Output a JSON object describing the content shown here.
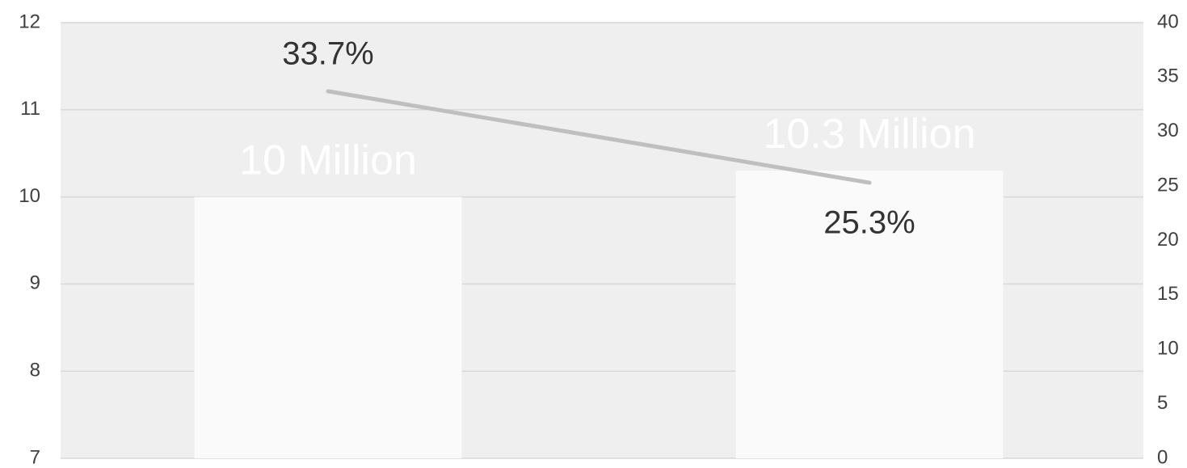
{
  "chart_data": {
    "type": "bar",
    "categories": [
      null,
      null
    ],
    "series": [
      {
        "type": "bar",
        "color": "#fafafa",
        "values": [
          10,
          10.3
        ],
        "value_labels": [
          "10 Million",
          "10.3 Million"
        ]
      },
      {
        "type": "line",
        "axis": "y2",
        "color": "#bfbfbf",
        "values": [
          33.7,
          25.3
        ],
        "value_labels": [
          "33.7%",
          "25.3%"
        ]
      }
    ],
    "ylim": [
      7,
      12
    ],
    "yticks": [
      7,
      8,
      9,
      10,
      11,
      12
    ],
    "y2lim": [
      0,
      40
    ],
    "y2ticks": [
      0,
      5,
      10,
      15,
      20,
      25,
      30,
      35,
      40
    ],
    "grid": true
  }
}
